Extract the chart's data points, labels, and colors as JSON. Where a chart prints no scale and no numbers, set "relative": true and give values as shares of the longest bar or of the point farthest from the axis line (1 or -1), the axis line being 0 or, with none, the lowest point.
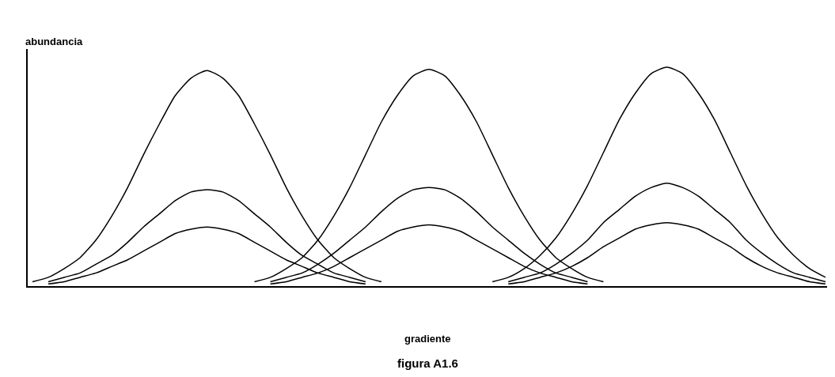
{
  "chart_data": {
    "type": "line",
    "relative": true,
    "ylabel": "abundancia",
    "xlabel": "gradiente",
    "annotations": [
      "figura A1.6"
    ],
    "marker": "none",
    "line_style": "solid",
    "categories": [
      null,
      null,
      null,
      null,
      null,
      null,
      null,
      null,
      null,
      null,
      null,
      null,
      null,
      null,
      null,
      null,
      null,
      null,
      null,
      null,
      null,
      null,
      null,
      null,
      null,
      null,
      null,
      null,
      null,
      null,
      null,
      null,
      null,
      null,
      null,
      null,
      null,
      null,
      null,
      null,
      null,
      null,
      null,
      null,
      null,
      null,
      null,
      null,
      null,
      null,
      null
    ],
    "series": [
      {
        "color": "#000000",
        "values": [
          0.02,
          0.04,
          0.08,
          0.13,
          0.21,
          0.32,
          0.45,
          0.6,
          0.74,
          0.87,
          0.95,
          0.985,
          0.95,
          0.87,
          0.74,
          0.6,
          0.45,
          0.32,
          0.21,
          0.13,
          0.08,
          0.04,
          0.02,
          null,
          null,
          null,
          null,
          null,
          null,
          null,
          null,
          null,
          null,
          null,
          null,
          null,
          null,
          null,
          null,
          null,
          null,
          null,
          null,
          null,
          null,
          null,
          null,
          null,
          null,
          null,
          null
        ]
      },
      {
        "color": "#000000",
        "values": [
          null,
          null,
          null,
          null,
          null,
          null,
          null,
          null,
          null,
          null,
          null,
          null,
          null,
          null,
          0.02,
          0.04,
          0.08,
          0.13,
          0.21,
          0.32,
          0.45,
          0.6,
          0.75,
          0.87,
          0.96,
          0.99,
          0.96,
          0.87,
          0.75,
          0.6,
          0.45,
          0.32,
          0.21,
          0.13,
          0.08,
          0.04,
          0.02,
          null,
          null,
          null,
          null,
          null,
          null,
          null,
          null,
          null,
          null,
          null,
          null,
          null,
          null
        ]
      },
      {
        "color": "#000000",
        "values": [
          null,
          null,
          null,
          null,
          null,
          null,
          null,
          null,
          null,
          null,
          null,
          null,
          null,
          null,
          null,
          null,
          null,
          null,
          null,
          null,
          null,
          null,
          null,
          null,
          null,
          null,
          null,
          null,
          null,
          0.02,
          0.04,
          0.08,
          0.14,
          0.22,
          0.33,
          0.46,
          0.61,
          0.76,
          0.88,
          0.97,
          1,
          0.97,
          0.88,
          0.76,
          0.61,
          0.46,
          0.33,
          0.22,
          0.14,
          0.08,
          0.04
        ]
      },
      {
        "color": "#000000",
        "values": [
          null,
          0.02,
          0.04,
          0.06,
          0.1,
          0.14,
          0.2,
          0.27,
          0.33,
          0.39,
          0.43,
          0.44,
          0.43,
          0.39,
          0.33,
          0.27,
          0.2,
          0.14,
          0.1,
          0.06,
          0.04,
          0.02,
          null,
          null,
          null,
          null,
          null,
          null,
          null,
          null,
          null,
          null,
          null,
          null,
          null,
          null,
          null,
          null,
          null,
          null,
          null,
          null,
          null,
          null,
          null,
          null,
          null,
          null,
          null,
          null,
          null
        ]
      },
      {
        "color": "#000000",
        "values": [
          null,
          null,
          null,
          null,
          null,
          null,
          null,
          null,
          null,
          null,
          null,
          null,
          null,
          null,
          null,
          0.02,
          0.04,
          0.06,
          0.1,
          0.15,
          0.21,
          0.27,
          0.34,
          0.4,
          0.44,
          0.45,
          0.44,
          0.4,
          0.34,
          0.27,
          0.21,
          0.15,
          0.1,
          0.06,
          0.04,
          0.02,
          null,
          null,
          null,
          null,
          null,
          null,
          null,
          null,
          null,
          null,
          null,
          null,
          null,
          null,
          null
        ]
      },
      {
        "color": "#000000",
        "values": [
          null,
          null,
          null,
          null,
          null,
          null,
          null,
          null,
          null,
          null,
          null,
          null,
          null,
          null,
          null,
          null,
          null,
          null,
          null,
          null,
          null,
          null,
          null,
          null,
          null,
          null,
          null,
          null,
          null,
          null,
          0.02,
          0.04,
          0.06,
          0.1,
          0.15,
          0.21,
          0.29,
          0.35,
          0.41,
          0.45,
          0.47,
          0.45,
          0.41,
          0.35,
          0.29,
          0.21,
          0.15,
          0.1,
          0.06,
          0.04,
          0.02
        ]
      },
      {
        "color": "#000000",
        "values": [
          null,
          0.01,
          0.02,
          0.04,
          0.06,
          0.09,
          0.12,
          0.16,
          0.2,
          0.24,
          0.26,
          0.27,
          0.26,
          0.24,
          0.2,
          0.16,
          0.12,
          0.09,
          0.06,
          0.04,
          0.02,
          0.01,
          null,
          null,
          null,
          null,
          null,
          null,
          null,
          null,
          null,
          null,
          null,
          null,
          null,
          null,
          null,
          null,
          null,
          null,
          null,
          null,
          null,
          null,
          null,
          null,
          null,
          null,
          null,
          null,
          null
        ]
      },
      {
        "color": "#000000",
        "values": [
          null,
          null,
          null,
          null,
          null,
          null,
          null,
          null,
          null,
          null,
          null,
          null,
          null,
          null,
          null,
          0.01,
          0.02,
          0.04,
          0.06,
          0.09,
          0.13,
          0.17,
          0.21,
          0.25,
          0.27,
          0.28,
          0.27,
          0.25,
          0.21,
          0.17,
          0.13,
          0.09,
          0.06,
          0.04,
          0.02,
          0.01,
          null,
          null,
          null,
          null,
          null,
          null,
          null,
          null,
          null,
          null,
          null,
          null,
          null,
          null,
          null
        ]
      },
      {
        "color": "#000000",
        "values": [
          null,
          null,
          null,
          null,
          null,
          null,
          null,
          null,
          null,
          null,
          null,
          null,
          null,
          null,
          null,
          null,
          null,
          null,
          null,
          null,
          null,
          null,
          null,
          null,
          null,
          null,
          null,
          null,
          null,
          null,
          0.01,
          0.02,
          0.04,
          0.06,
          0.09,
          0.13,
          0.18,
          0.22,
          0.26,
          0.28,
          0.29,
          0.28,
          0.26,
          0.22,
          0.18,
          0.13,
          0.09,
          0.06,
          0.04,
          0.02,
          0.01
        ]
      }
    ]
  }
}
